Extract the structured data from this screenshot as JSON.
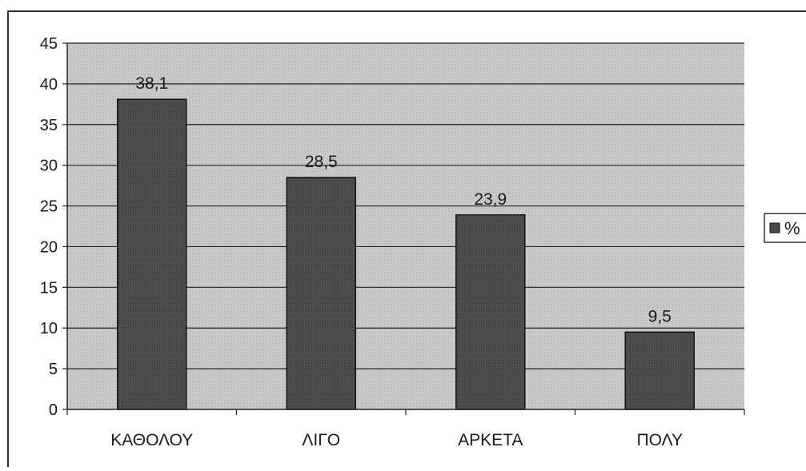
{
  "chart_data": {
    "type": "bar",
    "categories": [
      "ΚΑΘΟΛΟΥ",
      "ΛΙΓΟ",
      "ΑΡΚΕΤΑ",
      "ΠΟΛΥ"
    ],
    "series": [
      {
        "name": "%",
        "values": [
          38.1,
          28.5,
          23.9,
          9.5
        ]
      }
    ],
    "data_labels": [
      "38,1",
      "28,5",
      "23,9",
      "9,5"
    ],
    "yticks": [
      0,
      5,
      10,
      15,
      20,
      25,
      30,
      35,
      40,
      45
    ],
    "ylim": [
      0,
      45
    ],
    "grid": true,
    "legend_position": "right",
    "colors": {
      "bar": "#4a4a4a",
      "bar_stroke": "#111111",
      "plot_bg": "#c8c8c8",
      "grid": "#222222",
      "legend_swatch": "#4a4a4a"
    }
  }
}
